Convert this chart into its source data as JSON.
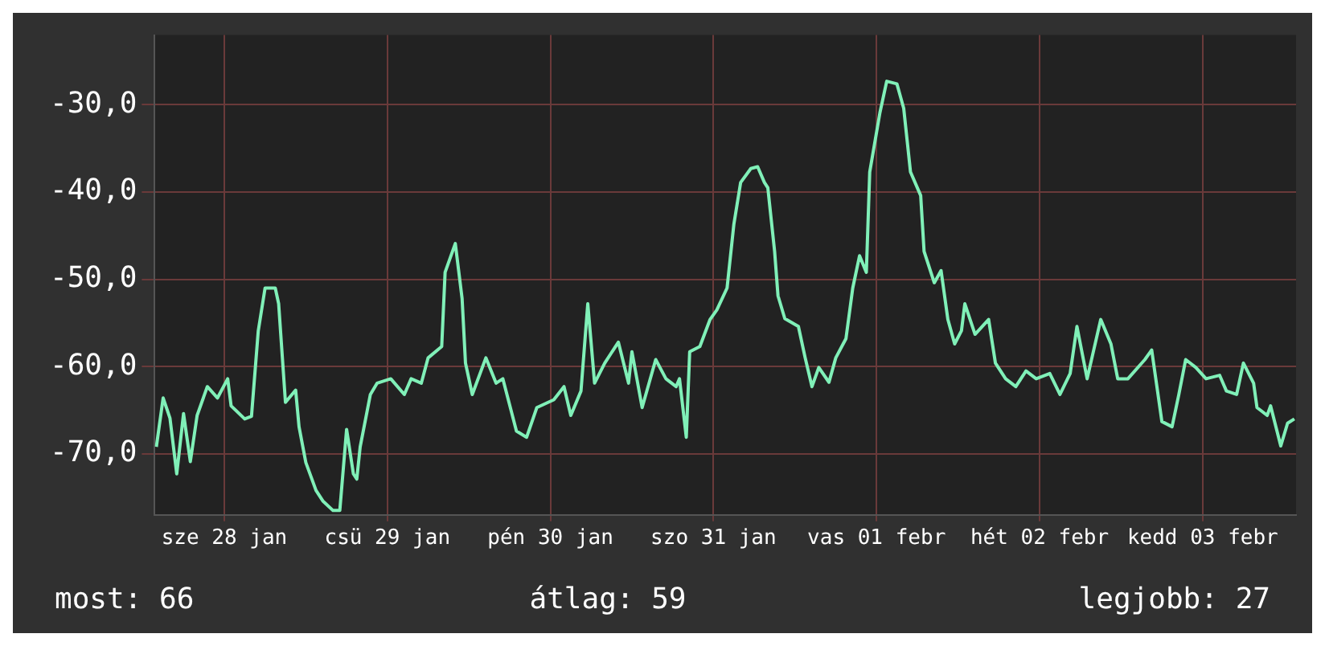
{
  "chart_data": {
    "type": "line",
    "x": [
      "--01-27T14:00",
      "--01-27T15:00",
      "--01-27T16:00",
      "--01-27T17:00",
      "--01-27T18:00",
      "--01-27T19:00",
      "--01-27T20:00",
      "--01-27T21:30",
      "--01-27T23:00",
      "--01-28T00:30",
      "--01-28T01:00",
      "--01-28T03:00",
      "--01-28T04:00",
      "--01-28T05:00",
      "--01-28T06:00",
      "--01-28T07:30",
      "--01-28T08:00",
      "--01-28T09:00",
      "--01-28T10:30",
      "--01-28T11:00",
      "--01-28T12:00",
      "--01-28T13:30",
      "--01-28T14:30",
      "--01-28T16:00",
      "--01-28T17:00",
      "--01-28T18:00",
      "--01-28T19:00",
      "--01-28T19:30",
      "--01-28T20:00",
      "--01-28T21:30",
      "--01-28T22:30",
      "--01-29T00:30",
      "--01-29T02:30",
      "--01-29T03:30",
      "--01-29T05:00",
      "--01-29T06:00",
      "--01-29T08:00",
      "--01-29T08:30",
      "--01-29T10:00",
      "--01-29T11:00",
      "--01-29T11:30",
      "--01-29T12:30",
      "--01-29T14:30",
      "--01-29T16:00",
      "--01-29T17:00",
      "--01-29T19:00",
      "--01-29T20:30",
      "--01-29T22:00",
      "--01-30T00:30",
      "--01-30T02:00",
      "--01-30T03:00",
      "--01-30T04:30",
      "--01-30T05:30",
      "--01-30T06:30",
      "--01-30T08:00",
      "--01-30T10:00",
      "--01-30T11:30",
      "--01-30T12:00",
      "--01-30T13:30",
      "--01-30T15:30",
      "--01-30T17:00",
      "--01-30T18:30",
      "--01-30T19:00",
      "--01-30T20:00",
      "--01-30T20:30",
      "--01-30T22:00",
      "--01-30T23:30",
      "--01-31T00:30",
      "--01-31T02:00",
      "--01-31T03:00",
      "--01-31T04:00",
      "--01-31T05:30",
      "--01-31T06:30",
      "--01-31T07:30",
      "--01-31T08:00",
      "--01-31T09:00",
      "--01-31T09:30",
      "--01-31T10:30",
      "--01-31T12:30",
      "--01-31T13:30",
      "--01-31T14:30",
      "--01-31T15:30",
      "--01-31T17:00",
      "--01-31T18:00",
      "--01-31T19:30",
      "--01-31T20:30",
      "--01-31T21:30",
      "--01-31T22:30",
      "--01-31T23:00",
      "--02-01T00:30",
      "--02-01T01:30",
      "--02-01T03:00",
      "--02-01T04:00",
      "--02-01T05:00",
      "--02-01T06:30",
      "--02-01T07:00",
      "--02-01T08:30",
      "--02-01T09:30",
      "--02-01T10:30",
      "--02-01T11:30",
      "--02-01T12:30",
      "--02-01T13:00",
      "--02-01T14:30",
      "--02-01T16:30",
      "--02-01T17:30",
      "--02-01T19:00",
      "--02-01T20:30",
      "--02-01T22:00",
      "--02-01T23:30",
      "--02-02T01:30",
      "--02-02T03:00",
      "--02-02T04:30",
      "--02-02T05:30",
      "--02-02T07:00",
      "--02-02T09:00",
      "--02-02T10:30",
      "--02-02T11:30",
      "--02-02T13:00",
      "--02-02T15:30",
      "--02-02T16:30",
      "--02-02T18:00",
      "--02-02T19:30",
      "--02-02T20:30",
      "--02-02T21:30",
      "--02-02T23:00",
      "--02-03T00:30",
      "--02-03T02:30",
      "--02-03T03:30",
      "--02-03T05:00",
      "--02-03T06:00",
      "--02-03T07:30",
      "--02-03T08:00",
      "--02-03T09:30",
      "--02-03T10:00",
      "--02-03T11:30",
      "--02-03T12:30",
      "--02-03T13:30"
    ],
    "series": [
      {
        "color": "#80f0b8",
        "values": [
          -69.2,
          -63.6,
          -65.9,
          -72.3,
          -65.4,
          -70.9,
          -65.6,
          -62.3,
          -63.6,
          -61.4,
          -64.5,
          -66,
          -65.7,
          -55.9,
          -51,
          -51,
          -52.8,
          -64.1,
          -62.7,
          -66.9,
          -71,
          -74.2,
          -75.4,
          -76.5,
          -76.5,
          -67.2,
          -72.3,
          -72.9,
          -69.2,
          -63.2,
          -61.9,
          -61.4,
          -63.2,
          -61.4,
          -61.9,
          -59,
          -57.7,
          -49.2,
          -45.9,
          -52.2,
          -59.6,
          -63.2,
          -59,
          -61.9,
          -61.4,
          -67.4,
          -68.1,
          -64.7,
          -63.8,
          -62.3,
          -65.6,
          -62.8,
          -52.8,
          -61.9,
          -59.6,
          -57.2,
          -61.9,
          -58.3,
          -64.7,
          -59.2,
          -61.4,
          -62.3,
          -61.4,
          -68.1,
          -58.3,
          -57.7,
          -54.6,
          -53.5,
          -51,
          -43.7,
          -38.9,
          -37.3,
          -37.1,
          -38.9,
          -39.5,
          -46.8,
          -51.9,
          -54.5,
          -55.4,
          -59,
          -62.3,
          -60.1,
          -61.8,
          -59,
          -56.8,
          -51,
          -47.3,
          -49.2,
          -37.7,
          -30.9,
          -27.3,
          -27.6,
          -30.4,
          -37.7,
          -40.4,
          -46.8,
          -50.4,
          -49,
          -54.6,
          -57.4,
          -55.9,
          -52.8,
          -56.3,
          -54.6,
          -59.6,
          -61.4,
          -62.3,
          -60.5,
          -61.4,
          -60.8,
          -63.2,
          -60.8,
          -55.4,
          -61.4,
          -54.6,
          -57.4,
          -61.4,
          -61.4,
          -59.2,
          -58.1,
          -66.3,
          -66.9,
          -63.2,
          -59.2,
          -60.1,
          -61.4,
          -61,
          -62.8,
          -63.2,
          -59.6,
          -61.9,
          -64.7,
          -65.6,
          -64.5,
          -69.1,
          -66.5,
          -66
        ]
      }
    ],
    "xlim": [
      "--01-27T13:45",
      "--02-03T13:45"
    ],
    "xticks": [
      {
        "value": "--01-28",
        "label": "sze 28 jan"
      },
      {
        "value": "--01-29",
        "label": "csü 29 jan"
      },
      {
        "value": "--01-30",
        "label": "pén 30 jan"
      },
      {
        "value": "--01-31",
        "label": "szo 31 jan"
      },
      {
        "value": "--02-01",
        "label": "vas 01 febr"
      },
      {
        "value": "--02-02",
        "label": "hét 02 febr"
      },
      {
        "value": "--02-03",
        "label": "kedd 03 febr"
      }
    ],
    "ylim": [
      -77,
      -22
    ],
    "yticks": [
      {
        "value": -30,
        "label": "-30,0"
      },
      {
        "value": -40,
        "label": "-40,0"
      },
      {
        "value": -50,
        "label": "-50,0"
      },
      {
        "value": -60,
        "label": "-60,0"
      },
      {
        "value": -70,
        "label": "-70,0"
      }
    ],
    "grid": true,
    "marker": "none",
    "annotations": [
      "most: 66",
      "átlag: 59",
      "legjobb: 27"
    ]
  }
}
